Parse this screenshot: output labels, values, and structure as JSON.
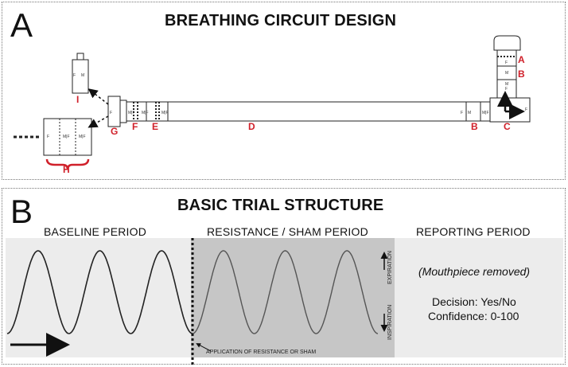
{
  "panel_a": {
    "letter": "A",
    "title": "BREATHING CIRCUIT DESIGN",
    "part_labels": {
      "A": "A",
      "B": "B",
      "C": "C",
      "D": "D",
      "E": "E",
      "F": "F",
      "G": "G",
      "H": "H",
      "I": "I"
    },
    "connector_labels": {
      "female": "F",
      "male": "M",
      "male_female": "M|F"
    },
    "accent_color": "#d0202a"
  },
  "panel_b": {
    "letter": "B",
    "title": "BASIC TRIAL STRUCTURE",
    "periods": {
      "baseline": "BASELINE PERIOD",
      "resistance": "RESISTANCE / SHAM PERIOD",
      "reporting": "REPORTING PERIOD"
    },
    "reporting_note": "(Mouthpiece removed)",
    "decision_line": "Decision: Yes/No",
    "confidence_line": "Confidence: 0-100",
    "expiration_label": "EXPIRATION",
    "inspiration_label": "INSPIRATION",
    "application_label": "APPLICATION OF RESISTANCE OR SHAM",
    "colors": {
      "baseline_bg": "#ececec",
      "resistance_bg": "#c6c6c6",
      "reporting_bg": "#ececec"
    }
  }
}
